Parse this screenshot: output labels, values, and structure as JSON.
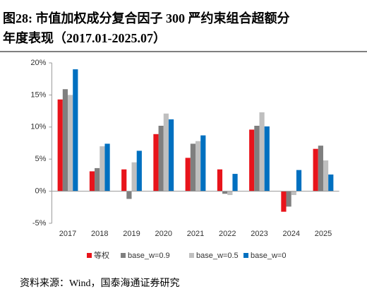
{
  "chart_data": {
    "type": "bar",
    "title": [
      "图28:  市值加权成分复合因子  300  严约束组合超额分",
      "年度表现（2017.01-2025.07）"
    ],
    "categories": [
      "2017",
      "2018",
      "2019",
      "2020",
      "2021",
      "2022",
      "2023",
      "2024",
      "2025"
    ],
    "series": [
      {
        "name": "等权",
        "color": "#e8141b",
        "values": [
          14.3,
          3.1,
          3.4,
          8.9,
          5.2,
          3.4,
          9.6,
          -3.2,
          6.6
        ]
      },
      {
        "name": "base_w=0.9",
        "color": "#7f7f7f",
        "values": [
          15.9,
          3.6,
          -1.2,
          10.2,
          7.4,
          -0.4,
          10.2,
          -2.4,
          7.1
        ]
      },
      {
        "name": "base_w=0.5",
        "color": "#bfbfbf",
        "values": [
          15.0,
          7.0,
          4.5,
          12.1,
          7.8,
          -0.6,
          12.3,
          -0.6,
          4.8
        ]
      },
      {
        "name": "base_w=0",
        "color": "#0070c0",
        "values": [
          19.0,
          7.4,
          6.3,
          11.2,
          8.7,
          2.7,
          10.1,
          3.3,
          2.6
        ]
      }
    ],
    "ylim": [
      -5,
      20
    ],
    "yticks": [
      {
        "value": -5,
        "label": "-5%"
      },
      {
        "value": 0,
        "label": "0%"
      },
      {
        "value": 5,
        "label": "5%"
      },
      {
        "value": 10,
        "label": "10%"
      },
      {
        "value": 15,
        "label": "15%"
      },
      {
        "value": 20,
        "label": "20%"
      }
    ],
    "legend": "bottom",
    "source": "资料来源：Wind，国泰海通证券研究"
  }
}
